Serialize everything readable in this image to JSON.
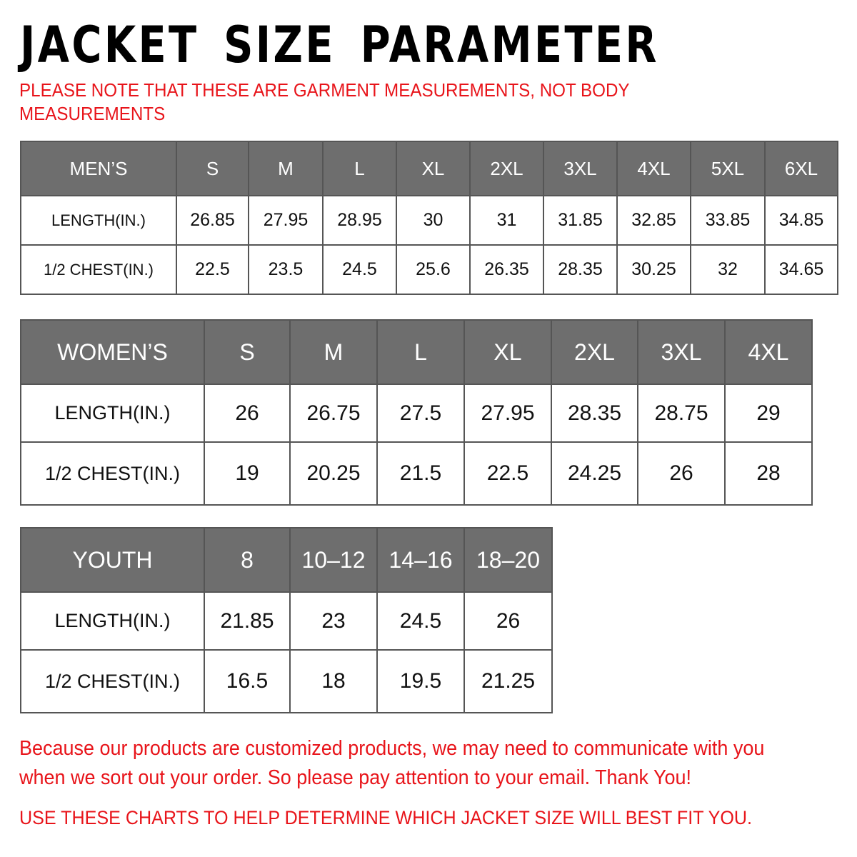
{
  "title": "JACKET SIZE PARAMETER",
  "note": "PLEASE NOTE THAT THESE ARE GARMENT MEASUREMENTS, NOT BODY MEASUREMENTS",
  "colors": {
    "header_bg": "#6e6e6e",
    "accent_red": "#e8141a"
  },
  "tables": {
    "men": {
      "header": [
        "MEN’S",
        "S",
        "M",
        "L",
        "XL",
        "2XL",
        "3XL",
        "4XL",
        "5XL",
        "6XL"
      ],
      "rows": [
        [
          "LENGTH(IN.)",
          "26.85",
          "27.95",
          "28.95",
          "30",
          "31",
          "31.85",
          "32.85",
          "33.85",
          "34.85"
        ],
        [
          "1/2 CHEST(IN.)",
          "22.5",
          "23.5",
          "24.5",
          "25.6",
          "26.35",
          "28.35",
          "30.25",
          "32",
          "34.65"
        ]
      ]
    },
    "women": {
      "header": [
        "WOMEN’S",
        "S",
        "M",
        "L",
        "XL",
        "2XL",
        "3XL",
        "4XL"
      ],
      "rows": [
        [
          "LENGTH(IN.)",
          "26",
          "26.75",
          "27.5",
          "27.95",
          "28.35",
          "28.75",
          "29"
        ],
        [
          "1/2 CHEST(IN.)",
          "19",
          "20.25",
          "21.5",
          "22.5",
          "24.25",
          "26",
          "28"
        ]
      ]
    },
    "youth": {
      "header": [
        "YOUTH",
        "8",
        "10–12",
        "14–16",
        "18–20"
      ],
      "rows": [
        [
          "LENGTH(IN.)",
          "21.85",
          "23",
          "24.5",
          "26"
        ],
        [
          "1/2 CHEST(IN.)",
          "16.5",
          "18",
          "19.5",
          "21.25"
        ]
      ]
    }
  },
  "footer": {
    "message": "Because our products are customized products, we may need to communicate with you when we sort out your order. So please pay attention to your email. Thank You!",
    "advice": "USE THESE CHARTS TO HELP DETERMINE WHICH JACKET SIZE WILL BEST FIT YOU."
  }
}
